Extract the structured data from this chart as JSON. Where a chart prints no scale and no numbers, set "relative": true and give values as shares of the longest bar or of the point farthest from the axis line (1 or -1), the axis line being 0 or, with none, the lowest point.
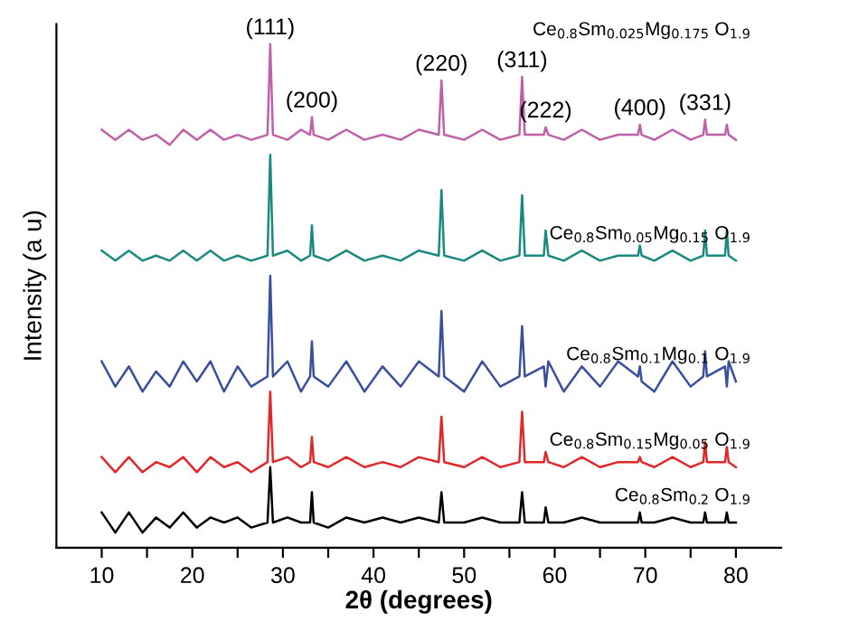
{
  "chart_data": {
    "type": "line",
    "relative": true,
    "xlabel": "2θ (degrees)",
    "ylabel": "Intensity (a u)",
    "tick_labels": "x",
    "grid": false,
    "legend": false,
    "marker": "none",
    "line_style": "solid",
    "xlim": [
      5,
      85
    ],
    "xticks": [
      10,
      {
        "value": 15,
        "label": null
      },
      20,
      {
        "value": 25,
        "label": null
      },
      30,
      {
        "value": 35,
        "label": null
      },
      40,
      {
        "value": 45,
        "label": null
      },
      50,
      {
        "value": 55,
        "label": null
      },
      60,
      {
        "value": 65,
        "label": null
      },
      70,
      {
        "value": 75,
        "label": null
      },
      80
    ],
    "x": [
      10,
      11.5,
      13,
      14.5,
      16,
      17.5,
      19,
      20.5,
      22,
      23.5,
      25,
      26.5,
      28.3,
      28.6,
      28.9,
      30.5,
      32,
      33.0,
      33.2,
      33.4,
      35,
      37,
      39,
      41,
      43,
      45,
      47.2,
      47.5,
      47.8,
      50,
      52,
      54,
      56.1,
      56.4,
      56.7,
      58.8,
      59.0,
      59.3,
      61,
      63,
      65,
      67,
      69.2,
      69.4,
      69.6,
      71,
      73,
      75,
      76.4,
      76.6,
      76.8,
      78.8,
      79.0,
      79.2,
      80
    ],
    "series": [
      {
        "name": "Ce$_{0.8}$Sm$_{0.025}$Mg$_{0.175}$ O$_{1.9}$",
        "color": "#c060a8",
        "values": [
          0.83,
          0.81,
          0.83,
          0.81,
          0.82,
          0.8,
          0.83,
          0.81,
          0.83,
          0.81,
          0.82,
          0.81,
          0.82,
          1.0,
          0.82,
          0.81,
          0.83,
          0.82,
          0.855,
          0.82,
          0.81,
          0.83,
          0.81,
          0.82,
          0.81,
          0.83,
          0.82,
          0.928,
          0.82,
          0.81,
          0.83,
          0.81,
          0.82,
          0.935,
          0.82,
          0.82,
          0.835,
          0.82,
          0.81,
          0.83,
          0.81,
          0.82,
          0.82,
          0.84,
          0.82,
          0.81,
          0.83,
          0.81,
          0.82,
          0.85,
          0.82,
          0.82,
          0.84,
          0.82,
          0.81
        ]
      },
      {
        "name": "Ce$_{0.8}$Sm$_{0.05}$Mg$_{0.15}$ O$_{1.9}$",
        "color": "#1a8a80",
        "values": [
          0.59,
          0.57,
          0.59,
          0.57,
          0.58,
          0.57,
          0.59,
          0.57,
          0.59,
          0.57,
          0.58,
          0.57,
          0.58,
          0.78,
          0.58,
          0.59,
          0.57,
          0.58,
          0.64,
          0.58,
          0.57,
          0.59,
          0.57,
          0.58,
          0.57,
          0.59,
          0.58,
          0.71,
          0.58,
          0.57,
          0.59,
          0.57,
          0.58,
          0.7,
          0.58,
          0.58,
          0.63,
          0.58,
          0.57,
          0.59,
          0.57,
          0.58,
          0.58,
          0.6,
          0.58,
          0.57,
          0.59,
          0.57,
          0.58,
          0.63,
          0.58,
          0.58,
          0.63,
          0.58,
          0.57
        ]
      },
      {
        "name": "Ce$_{0.8}$Sm$_{0.1}$Mg$_{0.1}$ O$_{1.9}$",
        "color": "#3a4fa0",
        "values": [
          0.37,
          0.32,
          0.36,
          0.31,
          0.35,
          0.32,
          0.37,
          0.33,
          0.37,
          0.31,
          0.36,
          0.32,
          0.34,
          0.54,
          0.34,
          0.37,
          0.31,
          0.34,
          0.41,
          0.34,
          0.32,
          0.37,
          0.31,
          0.36,
          0.32,
          0.37,
          0.34,
          0.47,
          0.34,
          0.31,
          0.37,
          0.32,
          0.34,
          0.44,
          0.34,
          0.36,
          0.32,
          0.37,
          0.31,
          0.36,
          0.32,
          0.37,
          0.34,
          0.36,
          0.33,
          0.31,
          0.37,
          0.32,
          0.34,
          0.39,
          0.34,
          0.36,
          0.32,
          0.37,
          0.33
        ]
      },
      {
        "name": "Ce$_{0.8}$Sm$_{0.15}$Mg$_{0.05}$ O$_{1.9}$",
        "color": "#e02828",
        "values": [
          0.18,
          0.15,
          0.18,
          0.15,
          0.17,
          0.16,
          0.18,
          0.15,
          0.18,
          0.16,
          0.17,
          0.15,
          0.17,
          0.31,
          0.17,
          0.18,
          0.16,
          0.17,
          0.22,
          0.17,
          0.16,
          0.18,
          0.16,
          0.17,
          0.16,
          0.18,
          0.17,
          0.26,
          0.17,
          0.16,
          0.18,
          0.16,
          0.17,
          0.27,
          0.17,
          0.17,
          0.19,
          0.17,
          0.16,
          0.18,
          0.16,
          0.17,
          0.17,
          0.18,
          0.17,
          0.16,
          0.18,
          0.16,
          0.17,
          0.21,
          0.17,
          0.17,
          0.2,
          0.17,
          0.16
        ]
      },
      {
        "name": "Ce$_{0.8}$Sm$_{0.2}$ O$_{1.9}$",
        "color": "#000000",
        "values": [
          0.07,
          0.03,
          0.07,
          0.03,
          0.06,
          0.04,
          0.07,
          0.04,
          0.06,
          0.05,
          0.06,
          0.04,
          0.05,
          0.16,
          0.05,
          0.06,
          0.05,
          0.05,
          0.11,
          0.05,
          0.04,
          0.06,
          0.05,
          0.06,
          0.05,
          0.06,
          0.05,
          0.11,
          0.05,
          0.05,
          0.06,
          0.05,
          0.05,
          0.11,
          0.05,
          0.05,
          0.08,
          0.05,
          0.05,
          0.06,
          0.05,
          0.05,
          0.05,
          0.07,
          0.05,
          0.05,
          0.06,
          0.05,
          0.05,
          0.07,
          0.05,
          0.05,
          0.07,
          0.05,
          0.05
        ]
      }
    ],
    "annotations": [
      {
        "text": "(111)",
        "x": 28.6,
        "y": 1.0
      },
      {
        "text": "(200)",
        "x": 33.2,
        "y": 0.855
      },
      {
        "text": "(220)",
        "x": 47.5,
        "y": 0.928
      },
      {
        "text": "(311)",
        "x": 56.4,
        "y": 0.935
      },
      {
        "text": "(222)",
        "x": 59.0,
        "y": 0.835
      },
      {
        "text": "(400)",
        "x": 69.4,
        "y": 0.84
      },
      {
        "text": "(331)",
        "x": 76.6,
        "y": 0.85
      }
    ]
  }
}
